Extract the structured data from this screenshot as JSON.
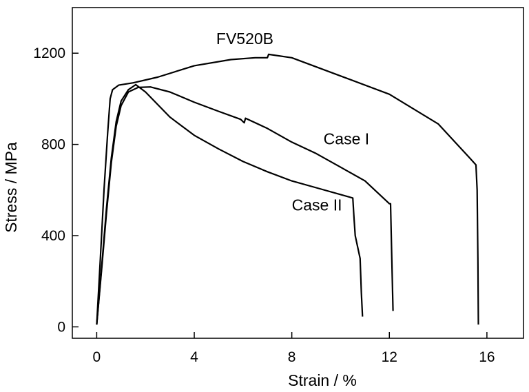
{
  "chart_data": {
    "type": "line",
    "title": "",
    "xlabel": "Strain / %",
    "ylabel": "Stress / MPa",
    "xlim": [
      -1,
      17.5
    ],
    "ylim": [
      -50,
      1400
    ],
    "xticks": [
      0,
      4,
      8,
      12,
      16
    ],
    "yticks": [
      0,
      400,
      800,
      1200
    ],
    "grid": false,
    "legend": "none",
    "annotations": [
      {
        "text": "FV520B",
        "x": 4.9,
        "y": 1240
      },
      {
        "text": "Case I",
        "x": 9.3,
        "y": 800
      },
      {
        "text": "Case II",
        "x": 8.0,
        "y": 510
      }
    ],
    "series": [
      {
        "name": "FV520B",
        "points": [
          [
            0,
            10
          ],
          [
            0.15,
            300
          ],
          [
            0.3,
            600
          ],
          [
            0.45,
            850
          ],
          [
            0.55,
            1000
          ],
          [
            0.65,
            1040
          ],
          [
            0.9,
            1060
          ],
          [
            1.5,
            1070
          ],
          [
            2.5,
            1095
          ],
          [
            4,
            1145
          ],
          [
            5.5,
            1172
          ],
          [
            6.5,
            1180
          ],
          [
            7.0,
            1180
          ],
          [
            7.05,
            1195
          ],
          [
            8,
            1180
          ],
          [
            10,
            1100
          ],
          [
            12,
            1020
          ],
          [
            14,
            890
          ],
          [
            15.3,
            740
          ],
          [
            15.55,
            710
          ],
          [
            15.6,
            600
          ],
          [
            15.63,
            300
          ],
          [
            15.65,
            10
          ]
        ]
      },
      {
        "name": "Case I",
        "points": [
          [
            0,
            10
          ],
          [
            0.2,
            250
          ],
          [
            0.4,
            500
          ],
          [
            0.6,
            720
          ],
          [
            0.8,
            880
          ],
          [
            1.0,
            970
          ],
          [
            1.3,
            1030
          ],
          [
            1.7,
            1050
          ],
          [
            2.2,
            1052
          ],
          [
            3,
            1030
          ],
          [
            4,
            985
          ],
          [
            5,
            945
          ],
          [
            5.9,
            910
          ],
          [
            6.05,
            895
          ],
          [
            6.1,
            915
          ],
          [
            7,
            870
          ],
          [
            8,
            810
          ],
          [
            9,
            760
          ],
          [
            10,
            700
          ],
          [
            11,
            640
          ],
          [
            12.0,
            540
          ],
          [
            12.05,
            540
          ],
          [
            12.1,
            300
          ],
          [
            12.15,
            70
          ]
        ]
      },
      {
        "name": "Case II",
        "points": [
          [
            0,
            10
          ],
          [
            0.2,
            260
          ],
          [
            0.4,
            520
          ],
          [
            0.6,
            740
          ],
          [
            0.8,
            900
          ],
          [
            1.0,
            990
          ],
          [
            1.3,
            1040
          ],
          [
            1.6,
            1062
          ],
          [
            2.0,
            1030
          ],
          [
            3,
            920
          ],
          [
            4,
            840
          ],
          [
            5,
            780
          ],
          [
            6,
            725
          ],
          [
            7,
            680
          ],
          [
            8,
            640
          ],
          [
            9,
            610
          ],
          [
            10,
            580
          ],
          [
            10.5,
            565
          ],
          [
            10.55,
            480
          ],
          [
            10.6,
            400
          ],
          [
            10.8,
            300
          ],
          [
            10.85,
            150
          ],
          [
            10.9,
            45
          ]
        ]
      }
    ]
  }
}
